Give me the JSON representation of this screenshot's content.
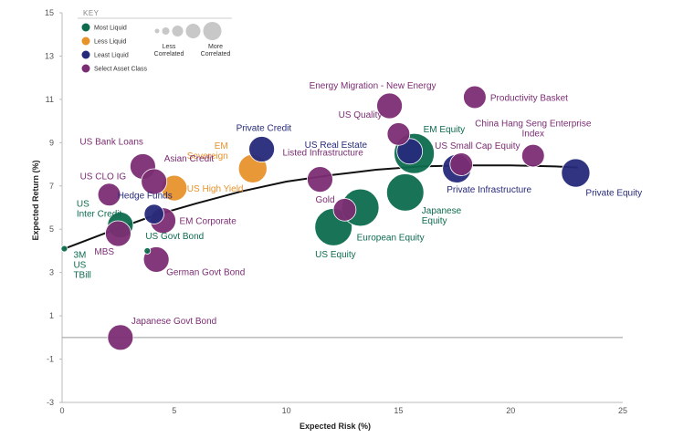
{
  "chart_data": {
    "type": "scatter",
    "title": "",
    "xlabel": "Expected Risk (%)",
    "ylabel": "Expected Return (%)",
    "xlim": [
      0,
      25
    ],
    "ylim": [
      -3,
      15
    ],
    "xticks": [
      0,
      5,
      10,
      15,
      20,
      25
    ],
    "yticks": [
      -3,
      -1,
      1,
      3,
      5,
      7,
      9,
      11,
      13,
      15
    ],
    "legend": {
      "position": "top-left",
      "title": "KEY",
      "entries": [
        {
          "name": "Most Liquid",
          "color": "#0d6b4e"
        },
        {
          "name": "Less Liquid",
          "color": "#e8922c"
        },
        {
          "name": "Least Liquid",
          "color": "#262a7a"
        },
        {
          "name": "Select Asset Class",
          "color": "#7b2d73"
        }
      ],
      "size_key": {
        "less_label": "Less\nCorrelated",
        "more_label": "More\nCorrelated"
      }
    },
    "colors": {
      "most": "#0d6b4e",
      "less": "#e8922c",
      "least": "#262a7a",
      "select": "#7b2d73",
      "frontier": "#111111",
      "size_key": "#c8c8c8"
    },
    "points": [
      {
        "name": "3M\nUS\nTBill",
        "x": 0.1,
        "y": 4.1,
        "cat": "most",
        "size": 1,
        "label_dx": 10,
        "label_dy": 10,
        "anchor": "start"
      },
      {
        "name": "US Govt Bond",
        "x": 3.8,
        "y": 4.0,
        "cat": "most",
        "size": 1,
        "label_dx": -2,
        "label_dy": -13,
        "anchor": "start"
      },
      {
        "name": "US\nInter Credit",
        "x": 2.6,
        "y": 5.2,
        "cat": "most",
        "size": 5,
        "label_dx": -48,
        "label_dy": -20,
        "anchor": "start"
      },
      {
        "name": "US Equity",
        "x": 12.1,
        "y": 5.1,
        "cat": "most",
        "size": 9,
        "label_dx": -20,
        "label_dy": 33,
        "anchor": "start"
      },
      {
        "name": "European Equity",
        "x": 13.3,
        "y": 6.0,
        "cat": "most",
        "size": 9,
        "label_dx": -4,
        "label_dy": 36,
        "anchor": "start"
      },
      {
        "name": "Japanese\nEquity",
        "x": 15.3,
        "y": 6.7,
        "cat": "most",
        "size": 9,
        "label_dx": 18,
        "label_dy": 23,
        "anchor": "start"
      },
      {
        "name": "EM Equity",
        "x": 15.7,
        "y": 8.5,
        "cat": "most",
        "size": 10,
        "label_dx": 10,
        "label_dy": -23,
        "anchor": "start"
      },
      {
        "name": "EM\nSovereign",
        "x": 8.5,
        "y": 7.8,
        "cat": "less",
        "size": 6,
        "label_dx": -27,
        "label_dy": -22,
        "anchor": "end"
      },
      {
        "name": "US High Yield",
        "x": 5.0,
        "y": 6.9,
        "cat": "less",
        "size": 5,
        "label_dx": 14,
        "label_dy": 4,
        "anchor": "start"
      },
      {
        "name": "Hedge Funds",
        "x": 4.1,
        "y": 5.7,
        "cat": "least",
        "size": 3,
        "label_dx": -40,
        "label_dy": -17,
        "anchor": "start"
      },
      {
        "name": "Private Credit",
        "x": 8.9,
        "y": 8.7,
        "cat": "least",
        "size": 5,
        "label_dx": -28,
        "label_dy": -20,
        "anchor": "start"
      },
      {
        "name": "US Real Estate",
        "x": 15.5,
        "y": 8.6,
        "cat": "least",
        "size": 5,
        "label_dx": -115,
        "label_dy": -4,
        "anchor": "start"
      },
      {
        "name": "Private Infrastructure",
        "x": 17.6,
        "y": 7.8,
        "cat": "least",
        "size": 6,
        "label_dx": -11,
        "label_dy": 26,
        "anchor": "start"
      },
      {
        "name": "Private Equity",
        "x": 22.9,
        "y": 7.6,
        "cat": "least",
        "size": 6,
        "label_dx": 11,
        "label_dy": 25,
        "anchor": "start"
      },
      {
        "name": "US Bank Loans",
        "x": 3.6,
        "y": 7.9,
        "cat": "select",
        "size": 5,
        "label_dx": -69,
        "label_dy": -24,
        "anchor": "start"
      },
      {
        "name": "US CLO IG",
        "x": 2.1,
        "y": 6.6,
        "cat": "select",
        "size": 4,
        "label_dx": -32,
        "label_dy": -17,
        "anchor": "start"
      },
      {
        "name": "Asian Credit",
        "x": 4.1,
        "y": 7.2,
        "cat": "select",
        "size": 5,
        "label_dx": 11,
        "label_dy": -22,
        "anchor": "start"
      },
      {
        "name": "EM Corporate",
        "x": 4.5,
        "y": 5.4,
        "cat": "select",
        "size": 5,
        "label_dx": 18,
        "label_dy": 4,
        "anchor": "start"
      },
      {
        "name": "MBS",
        "x": 2.5,
        "y": 4.8,
        "cat": "select",
        "size": 5,
        "label_dx": -26,
        "label_dy": 23,
        "anchor": "start"
      },
      {
        "name": "German Govt Bond",
        "x": 4.2,
        "y": 3.6,
        "cat": "select",
        "size": 5,
        "label_dx": 11,
        "label_dy": 17,
        "anchor": "start"
      },
      {
        "name": "Japanese Govt Bond",
        "x": 2.6,
        "y": 0.0,
        "cat": "select",
        "size": 5,
        "label_dx": 12,
        "label_dy": -15,
        "anchor": "start"
      },
      {
        "name": "Listed Infrastructure",
        "x": 11.5,
        "y": 7.3,
        "cat": "select",
        "size": 5,
        "label_dx": -41,
        "label_dy": -26,
        "anchor": "start"
      },
      {
        "name": "Gold",
        "x": 12.6,
        "y": 5.9,
        "cat": "select",
        "size": 4,
        "label_dx": -32,
        "label_dy": -8,
        "anchor": "start"
      },
      {
        "name": "US Quality",
        "x": 15.0,
        "y": 9.4,
        "cat": "select",
        "size": 4,
        "label_dx": -18,
        "label_dy": -18,
        "anchor": "end"
      },
      {
        "name": "Energy Migration - New Energy",
        "x": 14.6,
        "y": 10.7,
        "cat": "select",
        "size": 5,
        "label_dx": -88,
        "label_dy": -19,
        "anchor": "start"
      },
      {
        "name": "Productivity Basket",
        "x": 18.4,
        "y": 11.1,
        "cat": "select",
        "size": 4,
        "label_dx": 17,
        "label_dy": 4,
        "anchor": "start"
      },
      {
        "name": "US Small Cap Equity",
        "x": 17.8,
        "y": 8.0,
        "cat": "select",
        "size": 4,
        "label_dx": -29,
        "label_dy": -17,
        "anchor": "start"
      },
      {
        "name": "China Hang Seng Enterprise\nIndex",
        "x": 21.0,
        "y": 8.4,
        "cat": "select",
        "size": 4,
        "label_dx": 0,
        "label_dy": -32,
        "anchor": "middle"
      }
    ],
    "frontier": {
      "x": [
        0.1,
        2,
        4,
        6,
        8,
        10,
        12,
        14,
        16,
        18,
        20,
        22,
        23
      ],
      "y": [
        4.1,
        4.85,
        5.6,
        6.2,
        6.75,
        7.2,
        7.5,
        7.75,
        7.9,
        7.95,
        7.95,
        7.9,
        7.85
      ]
    }
  }
}
